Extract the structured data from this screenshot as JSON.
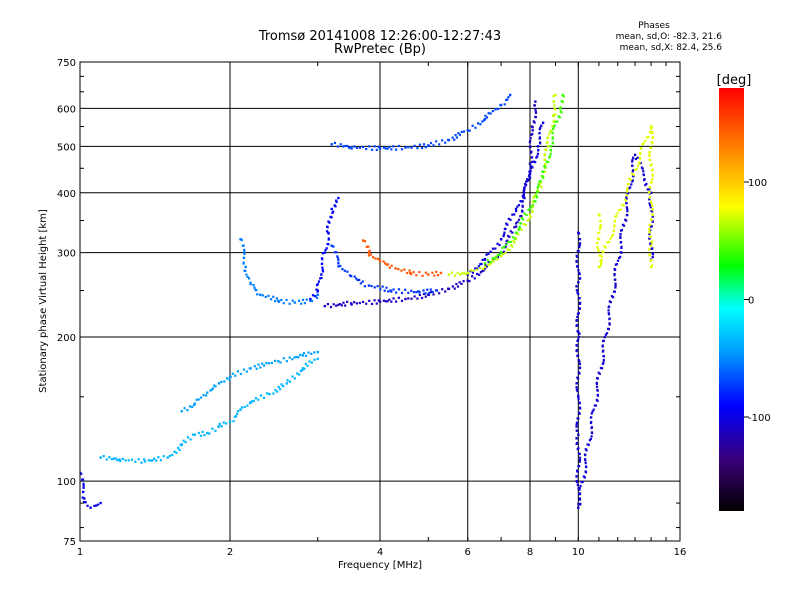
{
  "chart_data": {
    "type": "scatter",
    "title": "Tromsø 20141008 12:26:00-12:27:43",
    "subtitle": "RwPretec (Bp)",
    "xlabel": "Frequency [MHz]",
    "ylabel": "Stationary phase Virtual Height [km]",
    "x_scale": "log",
    "y_scale": "log",
    "xlim": [
      1,
      16
    ],
    "ylim": [
      75,
      750
    ],
    "x_ticks": [
      1,
      2,
      4,
      6,
      8,
      10,
      16
    ],
    "y_ticks": [
      75,
      100,
      200,
      300,
      400,
      500,
      600,
      750
    ],
    "grid": true,
    "colorbar": {
      "label": "[deg]",
      "range": [
        -180,
        180
      ],
      "ticks": [
        100,
        0,
        -100
      ],
      "colors": [
        "#000000",
        "#3a0078",
        "#0000ff",
        "#00a0ff",
        "#00ffff",
        "#00ff00",
        "#ffff00",
        "#ff8000",
        "#ff0000"
      ]
    },
    "phase_stats": {
      "heading": "Phases",
      "o_line": "mean, sd,O: -82.3, 21.6",
      "x_line": "mean, sd,X:  82.4, 25.6"
    },
    "series": [
      {
        "phase": -95,
        "points": [
          [
            1.0,
            104
          ],
          [
            1.02,
            92
          ],
          [
            1.05,
            88
          ],
          [
            1.1,
            90
          ]
        ]
      },
      {
        "phase": -35,
        "points": [
          [
            1.1,
            112
          ],
          [
            1.2,
            111
          ],
          [
            1.35,
            110
          ],
          [
            1.5,
            112
          ],
          [
            1.6,
            119
          ],
          [
            1.7,
            125
          ],
          [
            1.8,
            126
          ],
          [
            1.9,
            130
          ],
          [
            2.0,
            133
          ],
          [
            2.1,
            141
          ],
          [
            2.2,
            146
          ],
          [
            2.4,
            152
          ],
          [
            2.6,
            160
          ],
          [
            2.8,
            172
          ],
          [
            3.0,
            180
          ]
        ]
      },
      {
        "phase": -45,
        "points": [
          [
            1.6,
            140
          ],
          [
            1.7,
            145
          ],
          [
            1.8,
            153
          ],
          [
            1.9,
            160
          ],
          [
            2.0,
            165
          ],
          [
            2.2,
            172
          ],
          [
            2.5,
            178
          ],
          [
            2.8,
            183
          ],
          [
            3.0,
            186
          ]
        ]
      },
      {
        "phase": -55,
        "points": [
          [
            2.1,
            320
          ],
          [
            2.15,
            280
          ],
          [
            2.2,
            258
          ],
          [
            2.3,
            245
          ],
          [
            2.5,
            238
          ],
          [
            2.7,
            236
          ],
          [
            2.9,
            238
          ],
          [
            3.0,
            245
          ]
        ]
      },
      {
        "phase": -90,
        "points": [
          [
            2.9,
            240
          ],
          [
            3.0,
            250
          ],
          [
            3.05,
            270
          ],
          [
            3.1,
            300
          ],
          [
            3.15,
            330
          ],
          [
            3.2,
            370
          ],
          [
            3.3,
            390
          ]
        ]
      },
      {
        "phase": -110,
        "points": [
          [
            3.1,
            232
          ],
          [
            3.5,
            235
          ],
          [
            4.0,
            237
          ],
          [
            4.5,
            240
          ],
          [
            5.0,
            245
          ],
          [
            5.5,
            252
          ],
          [
            6.0,
            262
          ],
          [
            6.5,
            278
          ],
          [
            7.0,
            300
          ],
          [
            7.5,
            340
          ],
          [
            7.8,
            390
          ],
          [
            8.0,
            460
          ],
          [
            8.1,
            540
          ],
          [
            8.2,
            620
          ]
        ]
      },
      {
        "phase": -100,
        "points": [
          [
            6.0,
            270
          ],
          [
            6.5,
            290
          ],
          [
            7.0,
            320
          ],
          [
            7.5,
            370
          ],
          [
            8.0,
            430
          ],
          [
            8.3,
            500
          ],
          [
            8.5,
            560
          ]
        ]
      },
      {
        "phase": -75,
        "points": [
          [
            3.2,
            310
          ],
          [
            3.3,
            285
          ],
          [
            3.5,
            268
          ],
          [
            3.8,
            256
          ],
          [
            4.2,
            250
          ],
          [
            4.8,
            248
          ],
          [
            5.2,
            250
          ]
        ]
      },
      {
        "phase": 150,
        "points": [
          [
            3.7,
            318
          ],
          [
            3.8,
            300
          ],
          [
            4.0,
            288
          ],
          [
            4.3,
            278
          ],
          [
            4.6,
            272
          ],
          [
            5.0,
            270
          ],
          [
            5.3,
            272
          ]
        ]
      },
      {
        "phase": 80,
        "points": [
          [
            5.5,
            270
          ],
          [
            6.0,
            272
          ],
          [
            6.5,
            280
          ],
          [
            7.0,
            295
          ],
          [
            7.5,
            320
          ],
          [
            8.0,
            360
          ],
          [
            8.4,
            420
          ],
          [
            8.7,
            500
          ],
          [
            8.9,
            580
          ],
          [
            9.0,
            640
          ]
        ]
      },
      {
        "phase": 55,
        "points": [
          [
            6.5,
            285
          ],
          [
            7.0,
            300
          ],
          [
            7.5,
            330
          ],
          [
            8.0,
            370
          ],
          [
            8.5,
            430
          ],
          [
            8.8,
            500
          ],
          [
            9.2,
            600
          ],
          [
            9.3,
            640
          ]
        ]
      },
      {
        "phase": -70,
        "points": [
          [
            3.2,
            505
          ],
          [
            3.5,
            498
          ],
          [
            4.0,
            495
          ],
          [
            4.5,
            497
          ],
          [
            5.0,
            502
          ],
          [
            5.5,
            515
          ],
          [
            6.0,
            540
          ],
          [
            6.5,
            570
          ],
          [
            7.0,
            610
          ],
          [
            7.3,
            640
          ]
        ]
      },
      {
        "phase": -105,
        "points": [
          [
            10.0,
            330
          ],
          [
            10.0,
            260
          ],
          [
            10.0,
            205
          ],
          [
            10.0,
            150
          ],
          [
            10.0,
            125
          ],
          [
            10.0,
            88
          ],
          [
            13.0,
            480
          ],
          [
            14.0,
            400
          ],
          [
            14.0,
            290
          ]
        ]
      },
      {
        "phase": 85,
        "points": [
          [
            11.0,
            360
          ],
          [
            11.0,
            320
          ],
          [
            11.0,
            280
          ],
          [
            14.0,
            550
          ],
          [
            14.0,
            310
          ],
          [
            14.0,
            280
          ]
        ]
      }
    ]
  }
}
